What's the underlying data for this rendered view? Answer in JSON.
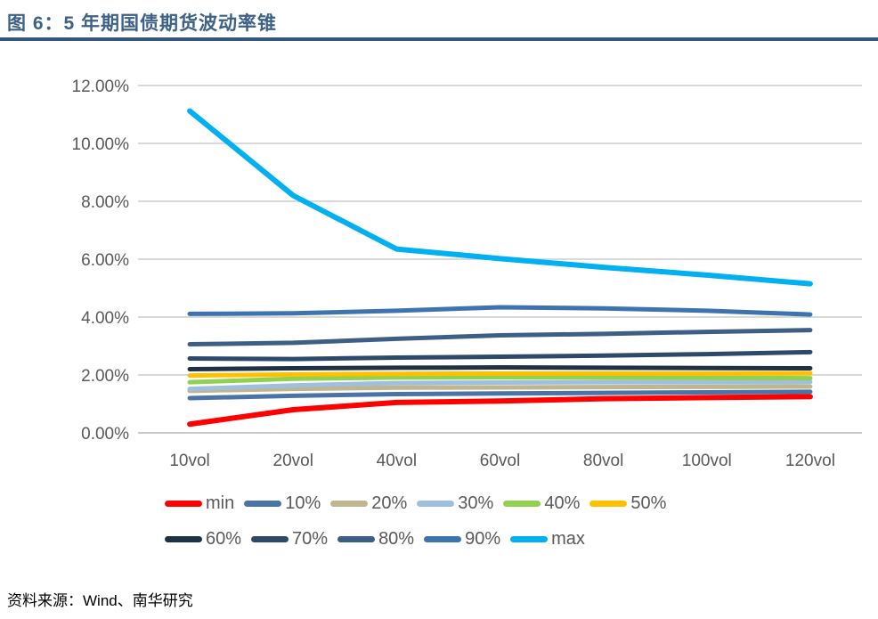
{
  "header": {
    "title": "图 6：5 年期国债期货波动率锥"
  },
  "footer": {
    "source": "资料来源：Wind、南华研究"
  },
  "colors": {
    "title_text": "#3D6187",
    "title_rule": "#37587E",
    "axis_text": "#595959",
    "gridline": "#D9D9D9",
    "background": "#FFFFFF"
  },
  "chart_data": {
    "type": "line",
    "title": "图 6：5 年期国债期货波动率锥",
    "categories": [
      "10vol",
      "20vol",
      "40vol",
      "60vol",
      "80vol",
      "100vol",
      "120vol"
    ],
    "xlabel": "",
    "ylabel": "",
    "ylim": [
      0,
      12
    ],
    "grid": true,
    "legend_position": "bottom",
    "y_ticks": [
      {
        "value": 0,
        "label": "0.00%"
      },
      {
        "value": 2,
        "label": "2.00%"
      },
      {
        "value": 4,
        "label": "4.00%"
      },
      {
        "value": 6,
        "label": "6.00%"
      },
      {
        "value": 8,
        "label": "8.00%"
      },
      {
        "value": 10,
        "label": "10.00%"
      },
      {
        "value": 12,
        "label": "12.00%"
      }
    ],
    "series": [
      {
        "name": "min",
        "color": "#FF0000",
        "values": [
          0.3,
          0.8,
          1.05,
          1.1,
          1.18,
          1.22,
          1.25
        ]
      },
      {
        "name": "10%",
        "color": "#4A74A6",
        "values": [
          1.2,
          1.28,
          1.34,
          1.36,
          1.38,
          1.4,
          1.42
        ]
      },
      {
        "name": "20%",
        "color": "#BFB58F",
        "values": [
          1.45,
          1.52,
          1.56,
          1.57,
          1.58,
          1.59,
          1.6
        ]
      },
      {
        "name": "30%",
        "color": "#9FBFDF",
        "values": [
          1.52,
          1.64,
          1.72,
          1.74,
          1.75,
          1.75,
          1.76
        ]
      },
      {
        "name": "40%",
        "color": "#92D050",
        "values": [
          1.75,
          1.87,
          1.91,
          1.92,
          1.91,
          1.9,
          1.89
        ]
      },
      {
        "name": "50%",
        "color": "#FFC000",
        "values": [
          1.98,
          2.02,
          2.04,
          2.05,
          2.05,
          2.05,
          2.06
        ]
      },
      {
        "name": "60%",
        "color": "#1F3245",
        "values": [
          2.2,
          2.23,
          2.25,
          2.26,
          2.25,
          2.24,
          2.23
        ]
      },
      {
        "name": "70%",
        "color": "#2E4A6B",
        "values": [
          2.57,
          2.55,
          2.6,
          2.63,
          2.67,
          2.72,
          2.79
        ]
      },
      {
        "name": "80%",
        "color": "#3E5F85",
        "values": [
          3.06,
          3.11,
          3.25,
          3.37,
          3.42,
          3.49,
          3.55
        ]
      },
      {
        "name": "90%",
        "color": "#3E74AE",
        "values": [
          4.11,
          4.13,
          4.22,
          4.34,
          4.3,
          4.22,
          4.09
        ]
      },
      {
        "name": "max",
        "color": "#00B0F0",
        "values": [
          11.12,
          8.2,
          6.35,
          6.02,
          5.72,
          5.45,
          5.15
        ]
      }
    ]
  },
  "legend": {
    "rows": [
      [
        "min",
        "10%",
        "20%",
        "30%",
        "40%",
        "50%"
      ],
      [
        "60%",
        "70%",
        "80%",
        "90%",
        "max"
      ]
    ]
  }
}
